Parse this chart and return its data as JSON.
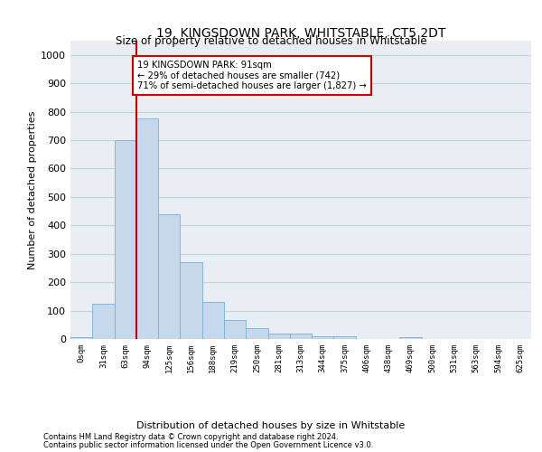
{
  "title": "19, KINGSDOWN PARK, WHITSTABLE, CT5 2DT",
  "subtitle": "Size of property relative to detached houses in Whitstable",
  "xlabel": "Distribution of detached houses by size in Whitstable",
  "ylabel": "Number of detached properties",
  "footnote1": "Contains HM Land Registry data © Crown copyright and database right 2024.",
  "footnote2": "Contains public sector information licensed under the Open Government Licence v3.0.",
  "bar_color": "#c6d9ec",
  "bar_edge_color": "#7aafd4",
  "annotation_line1": "19 KINGSDOWN PARK: 91sqm",
  "annotation_line2": "← 29% of detached houses are smaller (742)",
  "annotation_line3": "71% of semi-detached houses are larger (1,827) →",
  "annotation_box_color": "#cc0000",
  "vline_x": 2.5,
  "categories": [
    "0sqm",
    "31sqm",
    "63sqm",
    "94sqm",
    "125sqm",
    "156sqm",
    "188sqm",
    "219sqm",
    "250sqm",
    "281sqm",
    "313sqm",
    "344sqm",
    "375sqm",
    "406sqm",
    "438sqm",
    "469sqm",
    "500sqm",
    "531sqm",
    "563sqm",
    "594sqm",
    "625sqm"
  ],
  "bar_heights": [
    5,
    125,
    700,
    775,
    440,
    270,
    130,
    68,
    37,
    20,
    20,
    10,
    10,
    0,
    0,
    5,
    0,
    0,
    0,
    0,
    0
  ],
  "ylim": [
    0,
    1050
  ],
  "yticks": [
    0,
    100,
    200,
    300,
    400,
    500,
    600,
    700,
    800,
    900,
    1000
  ],
  "grid_color": "#c8d0d8",
  "bg_color": "#e8eef4"
}
